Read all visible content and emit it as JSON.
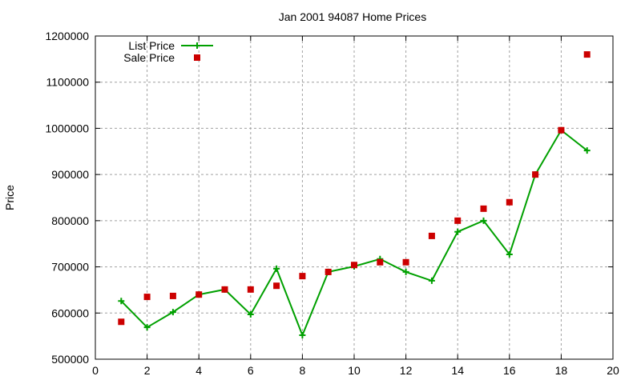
{
  "chart_data": {
    "type": "line",
    "title": "Jan 2001 94087 Home Prices",
    "xlabel": "",
    "ylabel": "Price",
    "xlim": [
      0,
      20
    ],
    "ylim": [
      500000,
      1200000
    ],
    "xticks": [
      0,
      2,
      4,
      6,
      8,
      10,
      12,
      14,
      16,
      18,
      20
    ],
    "yticks": [
      500000,
      600000,
      700000,
      800000,
      900000,
      1000000,
      1100000,
      1200000
    ],
    "grid": true,
    "legend_position": "top-left",
    "x": [
      1,
      2,
      3,
      4,
      5,
      6,
      7,
      8,
      9,
      10,
      11,
      12,
      13,
      14,
      15,
      16,
      17,
      18,
      19
    ],
    "series": [
      {
        "name": "List Price",
        "style": "linespoints",
        "marker": "plus",
        "color": "#00a000",
        "values": [
          626000,
          569000,
          602000,
          640000,
          651000,
          597000,
          696000,
          552000,
          689000,
          701000,
          717000,
          689000,
          670000,
          776000,
          800000,
          727000,
          900000,
          996000,
          952000
        ]
      },
      {
        "name": "Sale Price",
        "style": "points",
        "marker": "square",
        "color": "#cc0000",
        "values": [
          581000,
          635000,
          637000,
          640000,
          651000,
          651000,
          659000,
          680000,
          689000,
          704000,
          710000,
          710000,
          767000,
          800000,
          826000,
          840000,
          900000,
          996000,
          1160000
        ]
      }
    ]
  }
}
